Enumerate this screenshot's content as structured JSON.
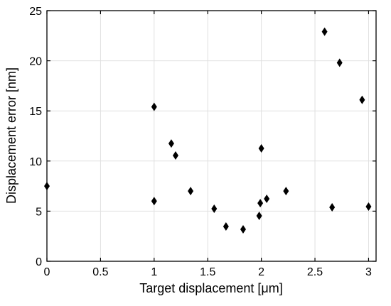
{
  "chart_data": {
    "type": "scatter",
    "xlabel": "Target displacement [μm]",
    "ylabel": "Displacement error [nm]",
    "x": [
      0,
      1,
      1,
      1.16,
      1.2,
      1.34,
      1.56,
      1.67,
      1.83,
      1.98,
      2.0,
      1.99,
      2.05,
      2.23,
      2.59,
      2.66,
      2.73,
      2.94,
      3.0
    ],
    "values": [
      7.5,
      15.4,
      6.0,
      11.75,
      10.55,
      7.0,
      5.24,
      3.47,
      3.19,
      4.53,
      11.26,
      5.8,
      6.23,
      7.0,
      22.9,
      5.38,
      19.8,
      16.1,
      5.45
    ],
    "color": "#000000",
    "marker": "diamond",
    "xlim": [
      0,
      3.07
    ],
    "ylim": [
      0,
      25
    ],
    "xticks": [
      0,
      0.5,
      1,
      1.5,
      2,
      2.5,
      3
    ],
    "yticks": [
      0,
      5,
      10,
      15,
      20,
      25
    ],
    "grid": true
  }
}
